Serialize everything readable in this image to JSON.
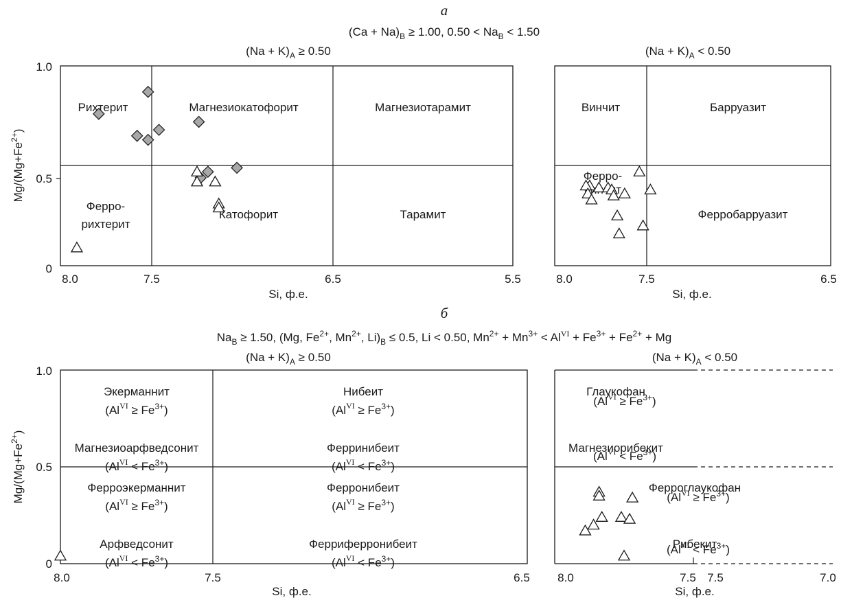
{
  "figure": {
    "panel_a": {
      "letter": "а",
      "condition": "(Ca + Na)B ≥ 1.00, 0.50 < NaB < 1.50",
      "left_header": "(Na + K)A ≥ 0.50",
      "right_header": "(Na + K)A < 0.50"
    },
    "panel_b": {
      "letter": "б",
      "condition": "NaB ≥ 1.50, (Mg, Fe2+, Mn2+, Li)B ≤ 0.5, Li < 0.50, Mn2+ + Mn3+ < AlVI + Fe3+ + Fe2+ + Mg",
      "left_header": "(Na + K)A ≥ 0.50",
      "right_header": "(Na + K)A < 0.50"
    }
  },
  "chart_data": [
    {
      "type": "scatter",
      "panel": "а-left",
      "xlabel": "Si, ф.е.",
      "ylabel": "Mg/(Mg+Fe2+)",
      "xlim": [
        8.0,
        5.5
      ],
      "ylim": [
        0,
        1.0
      ],
      "x_reversed": true,
      "x_ticks": [
        "8.0",
        "7.5",
        "6.5",
        "5.5"
      ],
      "y_ticks": [
        "0",
        "0.5",
        "1.0"
      ],
      "grid": false,
      "fields": [
        "Рихтерит",
        "Магнезиокатофорит",
        "Магнезиотарамит",
        "Ферро-",
        "рихтерит",
        "Катофорит",
        "Тарамит"
      ],
      "series": [
        {
          "marker": "diamond",
          "points": [
            [
              7.52,
              0.87
            ],
            [
              7.79,
              0.76
            ],
            [
              7.58,
              0.65
            ],
            [
              7.46,
              0.68
            ],
            [
              7.52,
              0.63
            ],
            [
              7.24,
              0.72
            ],
            [
              7.23,
              0.44
            ],
            [
              7.19,
              0.47
            ],
            [
              7.03,
              0.49
            ]
          ]
        },
        {
          "marker": "triangle",
          "points": [
            [
              7.25,
              0.47
            ],
            [
              7.25,
              0.42
            ],
            [
              7.15,
              0.42
            ],
            [
              7.13,
              0.31
            ],
            [
              7.13,
              0.29
            ],
            [
              7.91,
              0.09
            ]
          ]
        }
      ]
    },
    {
      "type": "scatter",
      "panel": "а-right",
      "xlabel": "Si, ф.е.",
      "xlim": [
        8.0,
        6.5
      ],
      "ylim": [
        0,
        1.0
      ],
      "x_reversed": true,
      "x_ticks": [
        "8.0",
        "7.5",
        "6.5"
      ],
      "grid": false,
      "fields": [
        "Винчит",
        "Барруазит",
        "Ферро-",
        "винчит",
        "Ферробарруазит"
      ],
      "series": [
        {
          "marker": "triangle",
          "points": [
            [
              7.54,
              0.47
            ],
            [
              7.81,
              0.4
            ],
            [
              7.76,
              0.39
            ],
            [
              7.71,
              0.39
            ],
            [
              7.69,
              0.38
            ],
            [
              7.83,
              0.4
            ],
            [
              7.82,
              0.36
            ],
            [
              7.68,
              0.35
            ],
            [
              7.62,
              0.36
            ],
            [
              7.48,
              0.38
            ],
            [
              7.8,
              0.33
            ],
            [
              7.66,
              0.25
            ],
            [
              7.65,
              0.16
            ],
            [
              7.52,
              0.2
            ]
          ]
        }
      ]
    },
    {
      "type": "scatter",
      "panel": "б-left",
      "xlabel": "Si, ф.е.",
      "ylabel": "Mg/(Mg+Fe2+)",
      "xlim": [
        8.0,
        6.5
      ],
      "ylim": [
        0,
        1.0
      ],
      "x_reversed": true,
      "x_ticks": [
        "8.0",
        "7.5",
        "6.5"
      ],
      "y_ticks": [
        "0",
        "0.5",
        "1.0"
      ],
      "grid": false,
      "fields": [
        {
          "name": "Экерманнит",
          "rule": "(AlVI ≥ Fe3+)"
        },
        {
          "name": "Магнезиоарфведсонит",
          "rule": "(AlVI < Fe3+)"
        },
        {
          "name": "Ферроэкерманнит",
          "rule": "(AlVI ≥ Fe3+)"
        },
        {
          "name": "Арфведсонит",
          "rule": "(AlVI < Fe3+)"
        },
        {
          "name": "Нибеит",
          "rule": "(AlVI ≥ Fe3+)"
        },
        {
          "name": "Ферринибеит",
          "rule": "(AlVI < Fe3+)"
        },
        {
          "name": "Ферронибеит",
          "rule": "(AlVI ≥ Fe3+)"
        },
        {
          "name": "Ферриферронибеит",
          "rule": "(AlVI < Fe3+)"
        }
      ],
      "series": [
        {
          "marker": "triangle",
          "points": [
            [
              8.0,
              0.04
            ]
          ]
        }
      ]
    },
    {
      "type": "scatter",
      "panel": "б-right",
      "xlabel": "Si, ф.е.",
      "xlim": [
        8.0,
        7.0
      ],
      "ylim": [
        0,
        1.0
      ],
      "x_reversed": true,
      "x_ticks": [
        "8.0",
        "7.5",
        "7.5",
        "7.0"
      ],
      "grid": false,
      "fields": [
        {
          "name": "Глаукофан",
          "rule": "(AlVI ≥ Fe3+)"
        },
        {
          "name": "Магнезиорибекит",
          "rule": "(AlVI < Fe3+)"
        },
        {
          "name": "Ферроглаукофан",
          "rule": "(AlVI ≥ Fe3+)"
        },
        {
          "name": "Рибекит",
          "rule": "(AlVI < Fe3+)"
        }
      ],
      "series": [
        {
          "marker": "triangle",
          "points": [
            [
              7.84,
              0.37
            ],
            [
              7.84,
              0.35
            ],
            [
              7.72,
              0.34
            ],
            [
              7.83,
              0.24
            ],
            [
              7.76,
              0.24
            ],
            [
              7.73,
              0.23
            ],
            [
              7.86,
              0.2
            ],
            [
              7.89,
              0.17
            ],
            [
              7.75,
              0.04
            ]
          ]
        }
      ]
    }
  ]
}
